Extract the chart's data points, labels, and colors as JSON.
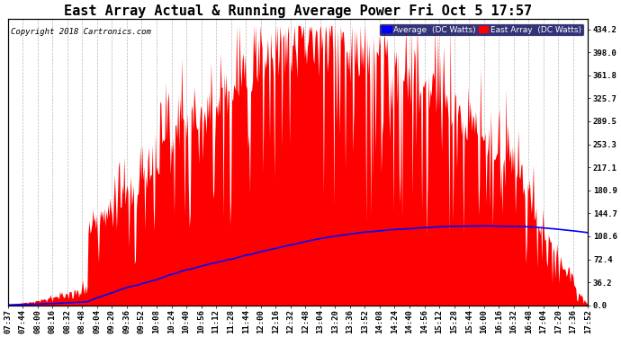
{
  "title": "East Array Actual & Running Average Power Fri Oct 5 17:57",
  "copyright": "Copyright 2018 Cartronics.com",
  "ylabel_right_ticks": [
    0.0,
    36.2,
    72.4,
    108.6,
    144.7,
    180.9,
    217.1,
    253.3,
    289.5,
    325.7,
    361.8,
    398.0,
    434.2
  ],
  "ymax": 450,
  "legend_labels": [
    "Average  (DC Watts)",
    "East Array  (DC Watts)"
  ],
  "legend_colors": [
    "#0000ff",
    "#ff0000"
  ],
  "background_color": "#ffffff",
  "plot_bg_color": "#ffffff",
  "grid_color": "#888888",
  "title_fontsize": 11,
  "axis_fontsize": 6.5,
  "xtick_labels": [
    "07:37",
    "07:44",
    "08:00",
    "08:16",
    "08:32",
    "08:48",
    "09:04",
    "09:20",
    "09:36",
    "09:52",
    "10:08",
    "10:24",
    "10:40",
    "10:56",
    "11:12",
    "11:28",
    "11:44",
    "12:00",
    "12:16",
    "12:32",
    "12:48",
    "13:04",
    "13:20",
    "13:36",
    "13:52",
    "14:08",
    "14:24",
    "14:40",
    "14:56",
    "15:12",
    "15:28",
    "15:44",
    "16:00",
    "16:16",
    "16:32",
    "16:48",
    "17:04",
    "17:20",
    "17:36",
    "17:52"
  ]
}
